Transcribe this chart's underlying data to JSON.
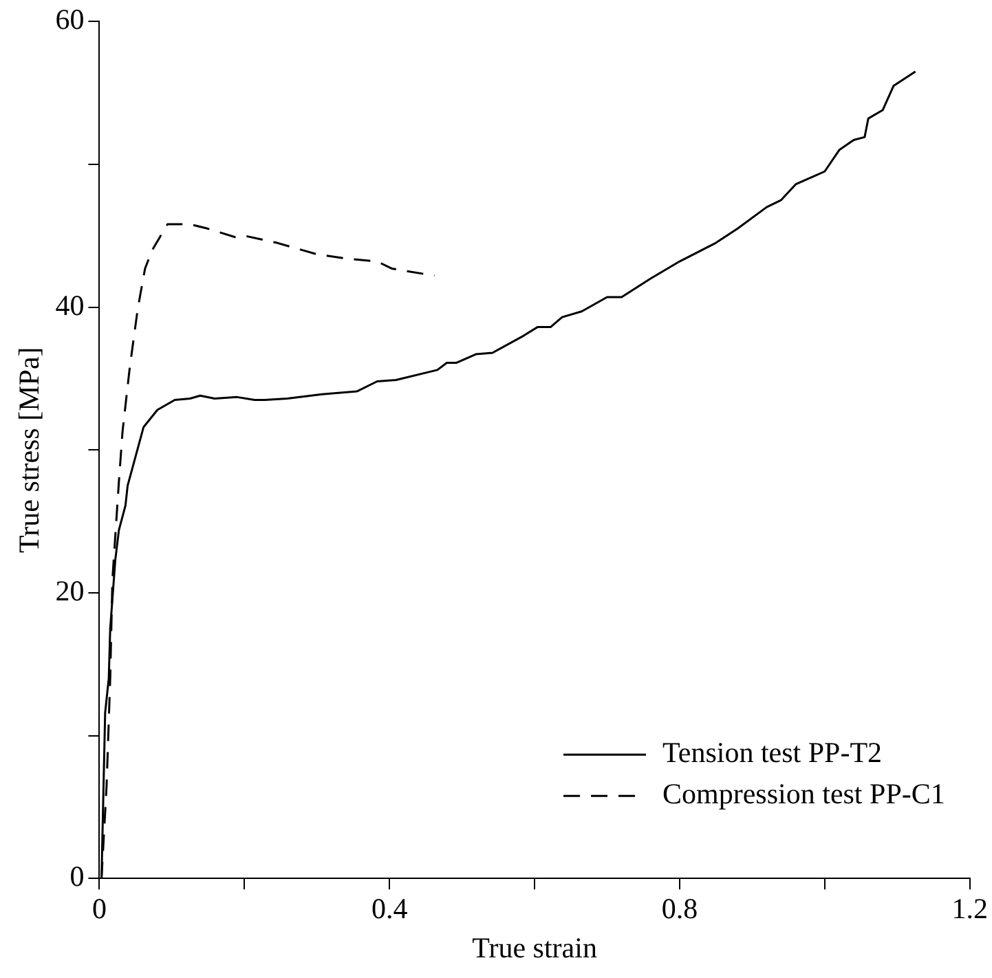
{
  "chart_data": {
    "type": "line",
    "xlabel": "True strain",
    "ylabel": "True stress [MPa]",
    "xlim": [
      0,
      1.2
    ],
    "xticks": [
      0,
      {
        "value": 0.2,
        "label": null
      },
      0.4,
      {
        "value": 0.6,
        "label": null
      },
      0.8,
      {
        "value": 1.0,
        "label": null
      },
      1.2
    ],
    "ylim": [
      0,
      60
    ],
    "yticks": [
      0,
      {
        "value": 10,
        "label": null
      },
      20,
      {
        "value": 30,
        "label": null
      },
      40,
      {
        "value": 50,
        "label": null
      },
      60
    ],
    "grid": false,
    "legend": "bottom right",
    "marker": "none",
    "series": [
      {
        "name": "Tension test PP-T2",
        "color": "#000000",
        "line_style": "solid",
        "x": [
          0.003,
          0.008,
          0.013,
          0.015,
          0.022,
          0.027,
          0.036,
          0.039,
          0.061,
          0.08,
          0.104,
          0.125,
          0.139,
          0.159,
          0.19,
          0.214,
          0.228,
          0.259,
          0.307,
          0.355,
          0.383,
          0.409,
          0.466,
          0.479,
          0.492,
          0.519,
          0.542,
          0.585,
          0.604,
          0.622,
          0.638,
          0.665,
          0.7,
          0.72,
          0.76,
          0.8,
          0.85,
          0.88,
          0.92,
          0.94,
          0.96,
          1.0,
          1.02,
          1.04,
          1.055,
          1.06,
          1.08,
          1.095,
          1.125
        ],
        "values": [
          0,
          11.6,
          14.0,
          17.5,
          22.3,
          24.4,
          26.1,
          27.5,
          31.6,
          32.8,
          33.5,
          33.6,
          33.8,
          33.6,
          33.7,
          33.5,
          33.5,
          33.6,
          33.9,
          34.1,
          34.8,
          34.9,
          35.6,
          36.1,
          36.1,
          36.7,
          36.8,
          38.0,
          38.6,
          38.6,
          39.3,
          39.7,
          40.7,
          40.7,
          42.0,
          43.2,
          44.5,
          45.5,
          47.0,
          47.5,
          48.6,
          49.5,
          51.0,
          51.7,
          51.9,
          53.2,
          53.8,
          55.5,
          56.5
        ]
      },
      {
        "name": "Compression test PP-C1",
        "color": "#000000",
        "line_style": "dashed",
        "x": [
          0.003,
          0.01,
          0.015,
          0.018,
          0.027,
          0.032,
          0.042,
          0.053,
          0.063,
          0.073,
          0.094,
          0.125,
          0.149,
          0.187,
          0.2,
          0.245,
          0.3,
          0.341,
          0.383,
          0.403,
          0.462
        ],
        "values": [
          0,
          6.5,
          14.0,
          20.9,
          27.8,
          31.3,
          35.8,
          39.9,
          42.7,
          44.0,
          45.8,
          45.8,
          45.5,
          44.9,
          45.0,
          44.5,
          43.7,
          43.4,
          43.2,
          42.7,
          42.2
        ]
      }
    ]
  }
}
